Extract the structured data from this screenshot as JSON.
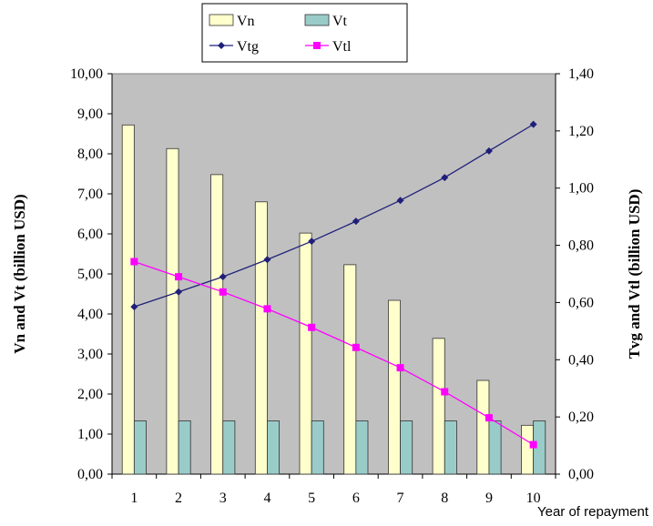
{
  "chart_data": {
    "type": "bar",
    "title": "",
    "xlabel": "Year of repayment",
    "ylabel_left": "Vn and Vt (billion USD)",
    "ylabel_right": "Tvg and Vtl (billion USD)",
    "categories": [
      "1",
      "2",
      "3",
      "4",
      "5",
      "6",
      "7",
      "8",
      "9",
      "10"
    ],
    "left_axis": {
      "ylim": [
        0,
        10
      ],
      "ticks": [
        "0,00",
        "1,00",
        "2,00",
        "3,00",
        "4,00",
        "5,00",
        "6,00",
        "7,00",
        "8,00",
        "9,00",
        "10,00"
      ]
    },
    "right_axis": {
      "ylim": [
        0,
        1.4
      ],
      "ticks": [
        "0,00",
        "0,20",
        "0,40",
        "0,60",
        "0,80",
        "1,00",
        "1,20",
        "1,40"
      ]
    },
    "series": [
      {
        "name": "Vn",
        "kind": "bar",
        "axis": "left",
        "color": "#ffffcc",
        "values": [
          8.72,
          8.13,
          7.48,
          6.8,
          6.02,
          5.23,
          4.34,
          3.39,
          2.34,
          1.22
        ]
      },
      {
        "name": "Vt",
        "kind": "bar",
        "axis": "left",
        "color": "#99ccc9",
        "values": [
          1.33,
          1.33,
          1.33,
          1.33,
          1.33,
          1.33,
          1.33,
          1.33,
          1.33,
          1.33
        ]
      },
      {
        "name": "Vtg",
        "kind": "line",
        "axis": "right",
        "color": "#1f1f7a",
        "marker": "diamond",
        "values": [
          0.585,
          0.637,
          0.69,
          0.75,
          0.814,
          0.884,
          0.957,
          1.037,
          1.13,
          1.223
        ]
      },
      {
        "name": "Vtl",
        "kind": "line",
        "axis": "right",
        "color": "#ff00ff",
        "marker": "square",
        "values": [
          0.743,
          0.69,
          0.637,
          0.578,
          0.513,
          0.443,
          0.372,
          0.288,
          0.197,
          0.103
        ]
      }
    ],
    "grid": false,
    "plot_background": "#c0c0c0",
    "legend_position": "top-center"
  }
}
